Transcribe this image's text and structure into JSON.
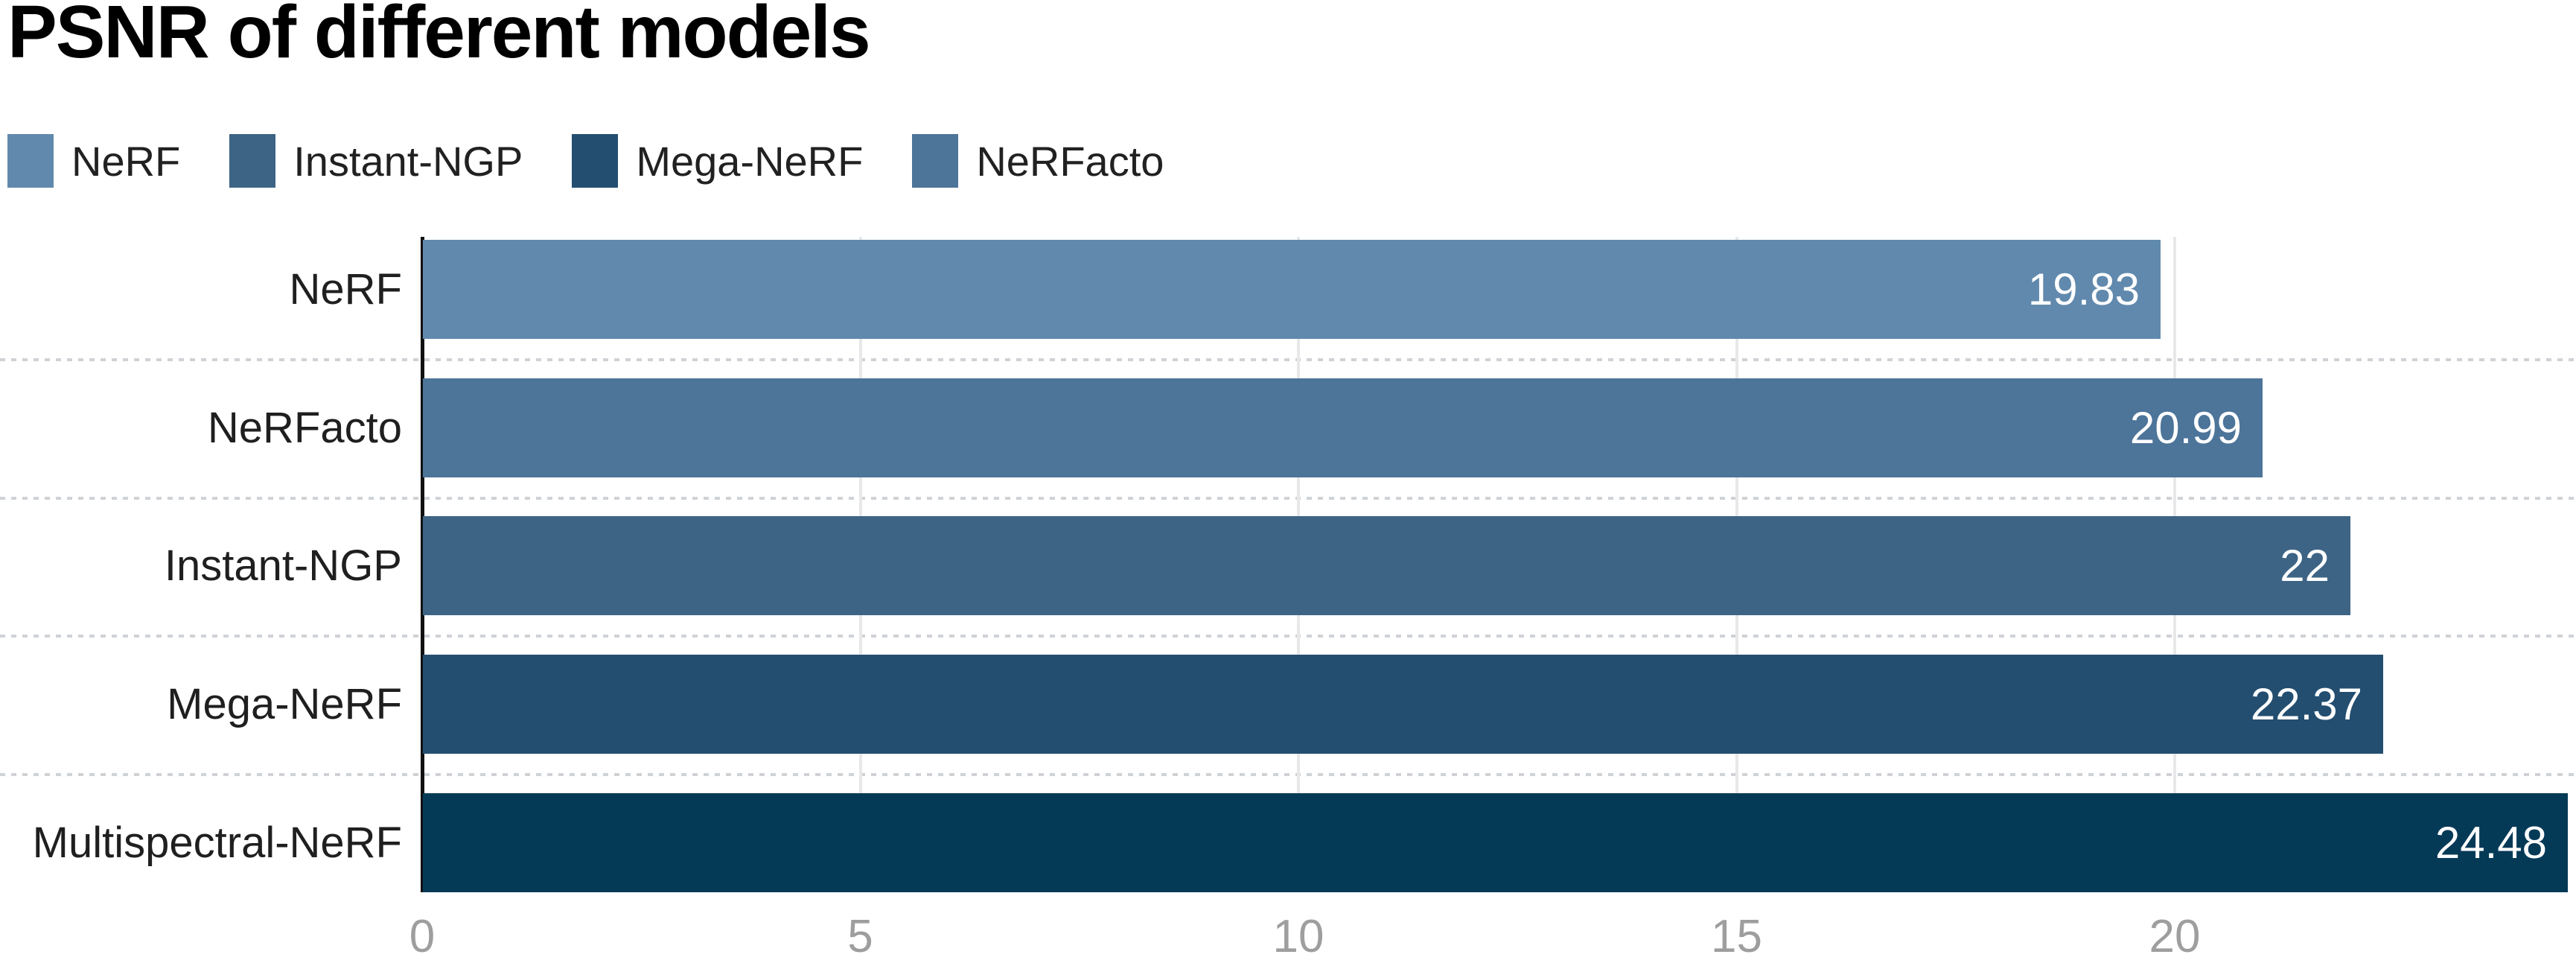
{
  "title": "PSNR of different models",
  "legend": {
    "position": "top-left",
    "items": [
      {
        "label": "NeRF",
        "color": "#6189ad"
      },
      {
        "label": "Instant-NGP",
        "color": "#3d6485"
      },
      {
        "label": "Mega-NeRF",
        "color": "#234e70"
      },
      {
        "label": "NeRFacto",
        "color": "#4d7499"
      }
    ]
  },
  "chart_data": {
    "type": "bar",
    "orientation": "horizontal",
    "title": "PSNR of different models",
    "categories": [
      "NeRF",
      "NeRFacto",
      "Instant-NGP",
      "Mega-NeRF",
      "Multispectral-NeRF"
    ],
    "values": [
      19.83,
      20.99,
      22,
      22.37,
      24.48
    ],
    "value_labels": [
      "19.83",
      "20.99",
      "22",
      "22.37",
      "24.48"
    ],
    "bar_colors": [
      "#6189ad",
      "#4d7499",
      "#3d6485",
      "#234e70",
      "#053a57"
    ],
    "xlabel": "",
    "ylabel": "",
    "xticks": [
      0,
      5,
      10,
      15,
      20
    ],
    "xtick_labels": [
      "0",
      "5",
      "10",
      "15",
      "20"
    ],
    "xlim": [
      0,
      24.58
    ],
    "grid": {
      "vertical_tick_lines": true,
      "dashed_row_separators": true
    },
    "legend_entries": [
      "NeRF",
      "Instant-NGP",
      "Mega-NeRF",
      "NeRFacto"
    ],
    "value_label_position": "inside-end",
    "value_label_color": "#ffffff"
  },
  "colors": {
    "background": "#ffffff",
    "title_text": "#000000",
    "category_label_text": "#1f1f1f",
    "tick_label_text": "#9e9e9e",
    "axis_line": "#111111",
    "vertical_gridline": "#e8e8e8",
    "row_separator": "#cfd2d6"
  }
}
